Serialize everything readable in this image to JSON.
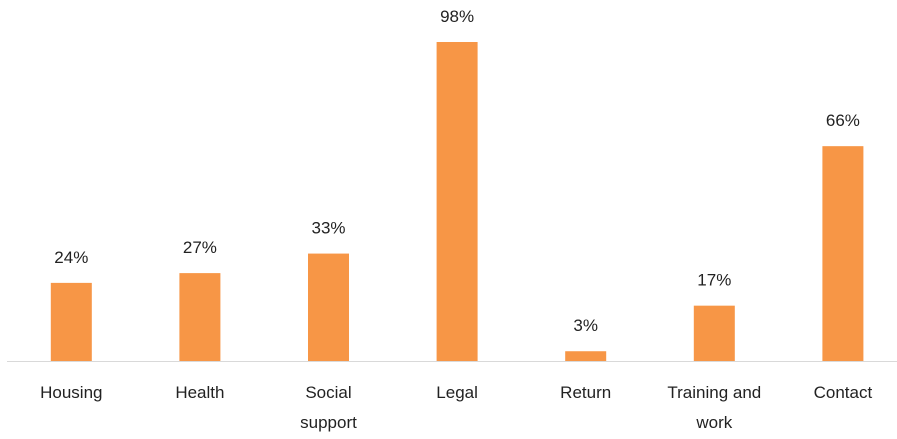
{
  "chart_data": {
    "type": "bar",
    "categories": [
      "Housing",
      "Health",
      "Social support",
      "Legal",
      "Return",
      "Training and work",
      "Contact"
    ],
    "values": [
      24,
      27,
      33,
      98,
      3,
      17,
      66
    ],
    "value_labels": [
      "24%",
      "27%",
      "33%",
      "98%",
      "3%",
      "17%",
      "66%"
    ],
    "color": "#f79646"
  }
}
